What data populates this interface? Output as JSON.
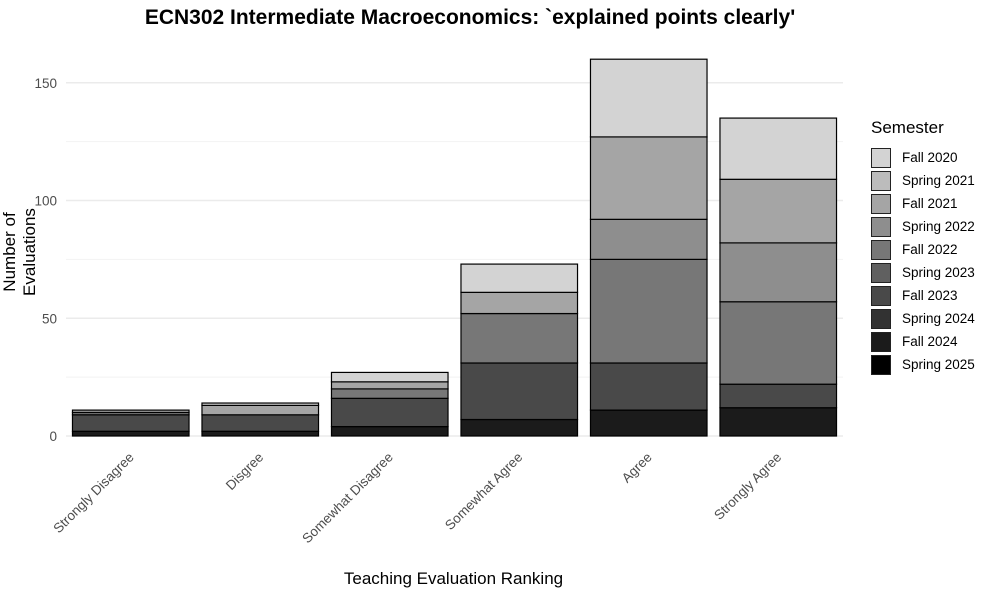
{
  "chart_data": {
    "type": "bar",
    "stacked": true,
    "title": "ECN302 Intermediate Macroeconomics: `explained points clearly'",
    "xlabel": "Teaching Evaluation Ranking",
    "ylabel": "Number of Evaluations",
    "ylim": [
      0,
      165
    ],
    "yticks": [
      0,
      50,
      100,
      150
    ],
    "grid": true,
    "legend_position": "right",
    "legend_title": "Semester",
    "categories": [
      "Strongly Disagree",
      "Disgree",
      "Somewhat Disagree",
      "Somewhat Agree",
      "Agree",
      "Strongly Agree"
    ],
    "series": [
      {
        "name": "Fall 2020",
        "color": "#d3d3d3",
        "values": [
          0,
          1,
          4,
          12,
          33,
          26
        ]
      },
      {
        "name": "Spring 2021",
        "color": "#bcbcbc",
        "values": [
          0,
          0,
          0,
          0,
          0,
          0
        ]
      },
      {
        "name": "Fall 2021",
        "color": "#a5a5a5",
        "values": [
          1,
          4,
          3,
          9,
          35,
          27
        ]
      },
      {
        "name": "Spring 2022",
        "color": "#8e8e8e",
        "values": [
          0,
          0,
          0,
          0,
          17,
          25
        ]
      },
      {
        "name": "Fall 2022",
        "color": "#777777",
        "values": [
          1,
          0,
          4,
          21,
          44,
          35
        ]
      },
      {
        "name": "Spring 2023",
        "color": "#606060",
        "values": [
          0,
          0,
          0,
          0,
          0,
          0
        ]
      },
      {
        "name": "Fall 2023",
        "color": "#494949",
        "values": [
          7,
          7,
          12,
          24,
          20,
          10
        ]
      },
      {
        "name": "Spring 2024",
        "color": "#323232",
        "values": [
          0,
          0,
          0,
          0,
          0,
          0
        ]
      },
      {
        "name": "Fall 2024",
        "color": "#1b1b1b",
        "values": [
          2,
          2,
          4,
          7,
          11,
          12
        ]
      },
      {
        "name": "Spring 2025",
        "color": "#000000",
        "values": [
          0,
          0,
          0,
          0,
          0,
          0
        ]
      }
    ],
    "totals": [
      11,
      14,
      27,
      73,
      160,
      135
    ]
  }
}
